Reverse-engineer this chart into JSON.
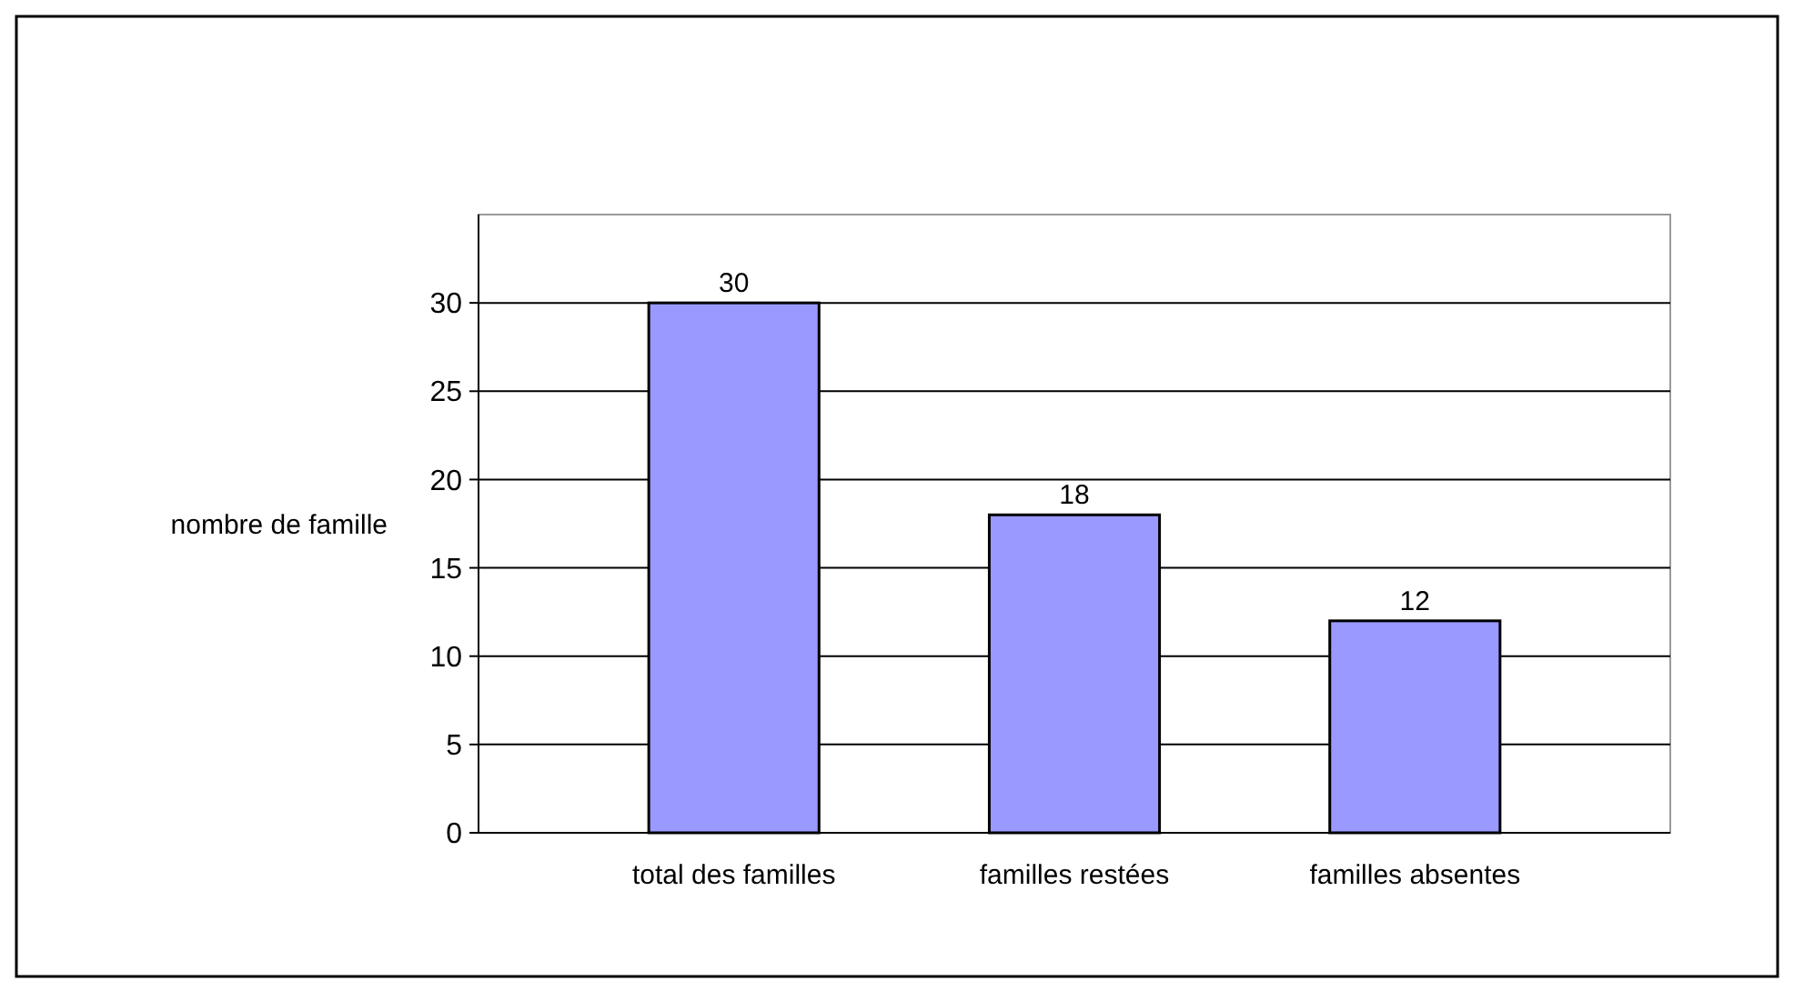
{
  "chart_data": {
    "type": "bar",
    "ylabel": "nombre de famille",
    "categories": [
      "total des familles",
      "familles restées",
      "familles absentes"
    ],
    "values": [
      30,
      18,
      12
    ],
    "color": "#9999ff",
    "ylim": [
      0,
      35
    ],
    "yticks": [
      0,
      5,
      10,
      15,
      20,
      25,
      30
    ],
    "grid": "y",
    "data_labels": true
  }
}
